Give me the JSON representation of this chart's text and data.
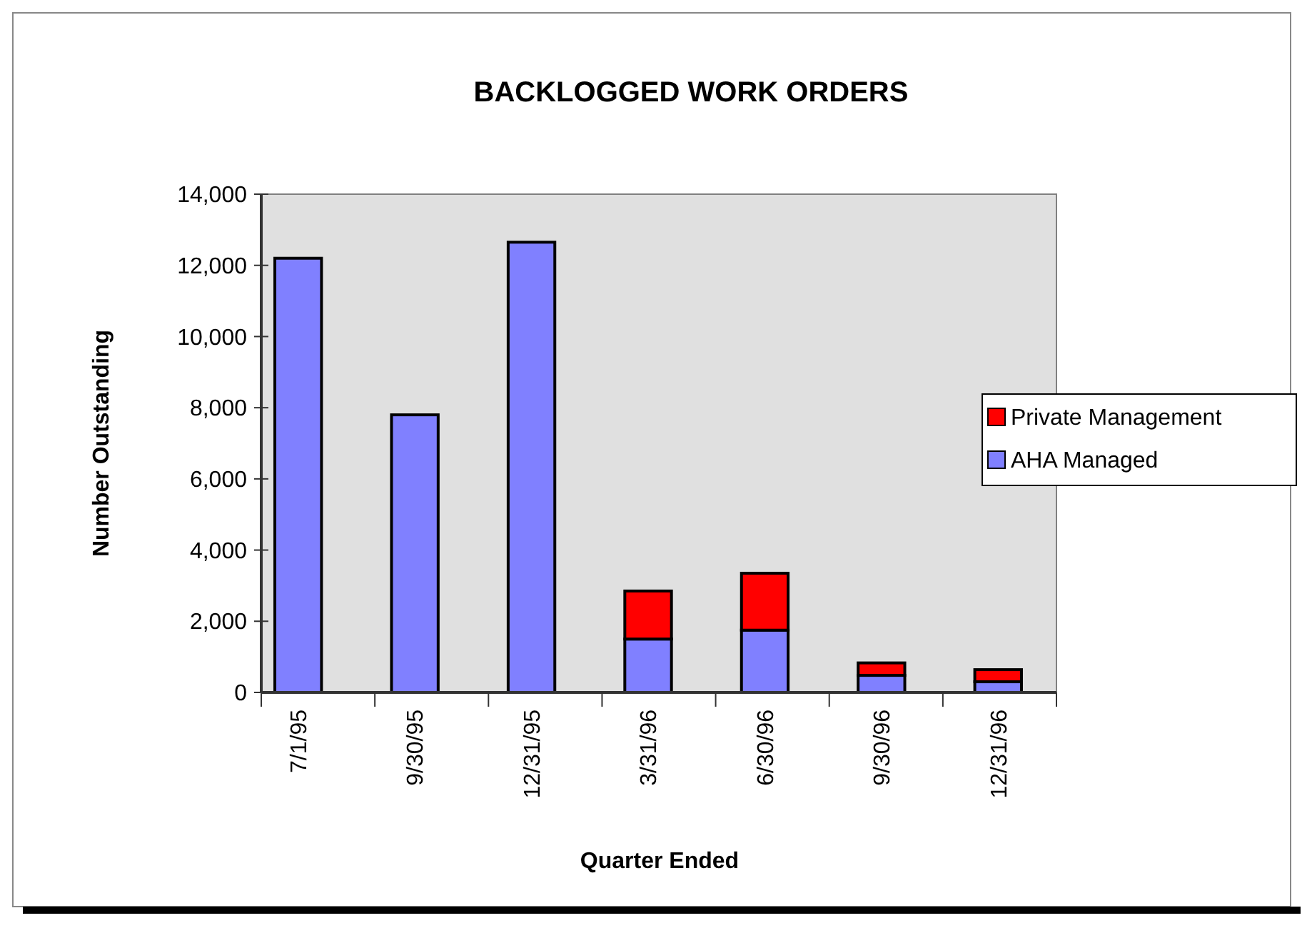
{
  "chart_data": {
    "type": "bar",
    "title": "BACKLOGGED WORK ORDERS",
    "xlabel": "Quarter Ended",
    "ylabel": "Number Outstanding",
    "categories": [
      "7/1/95",
      "9/30/95",
      "12/31/95",
      "3/31/96",
      "6/30/96",
      "9/30/96",
      "12/31/96"
    ],
    "series": [
      {
        "name": "AHA Managed",
        "color": "#8080ff",
        "values": [
          12200,
          7800,
          12650,
          1500,
          1750,
          480,
          300
        ]
      },
      {
        "name": "Private Management",
        "color": "#ff0000",
        "values": [
          null,
          null,
          null,
          1350,
          1600,
          350,
          340
        ]
      }
    ],
    "stacked": true,
    "ylim": [
      0,
      14000
    ],
    "yticks": [
      {
        "value": 0,
        "label": "0"
      },
      {
        "value": 2000,
        "label": "2,000"
      },
      {
        "value": 4000,
        "label": "4,000"
      },
      {
        "value": 6000,
        "label": "6,000"
      },
      {
        "value": 8000,
        "label": "8,000"
      },
      {
        "value": 10000,
        "label": "10,000"
      },
      {
        "value": 12000,
        "label": "12,000"
      },
      {
        "value": 14000,
        "label": "14,000"
      }
    ],
    "grid": false,
    "legend": "right"
  }
}
